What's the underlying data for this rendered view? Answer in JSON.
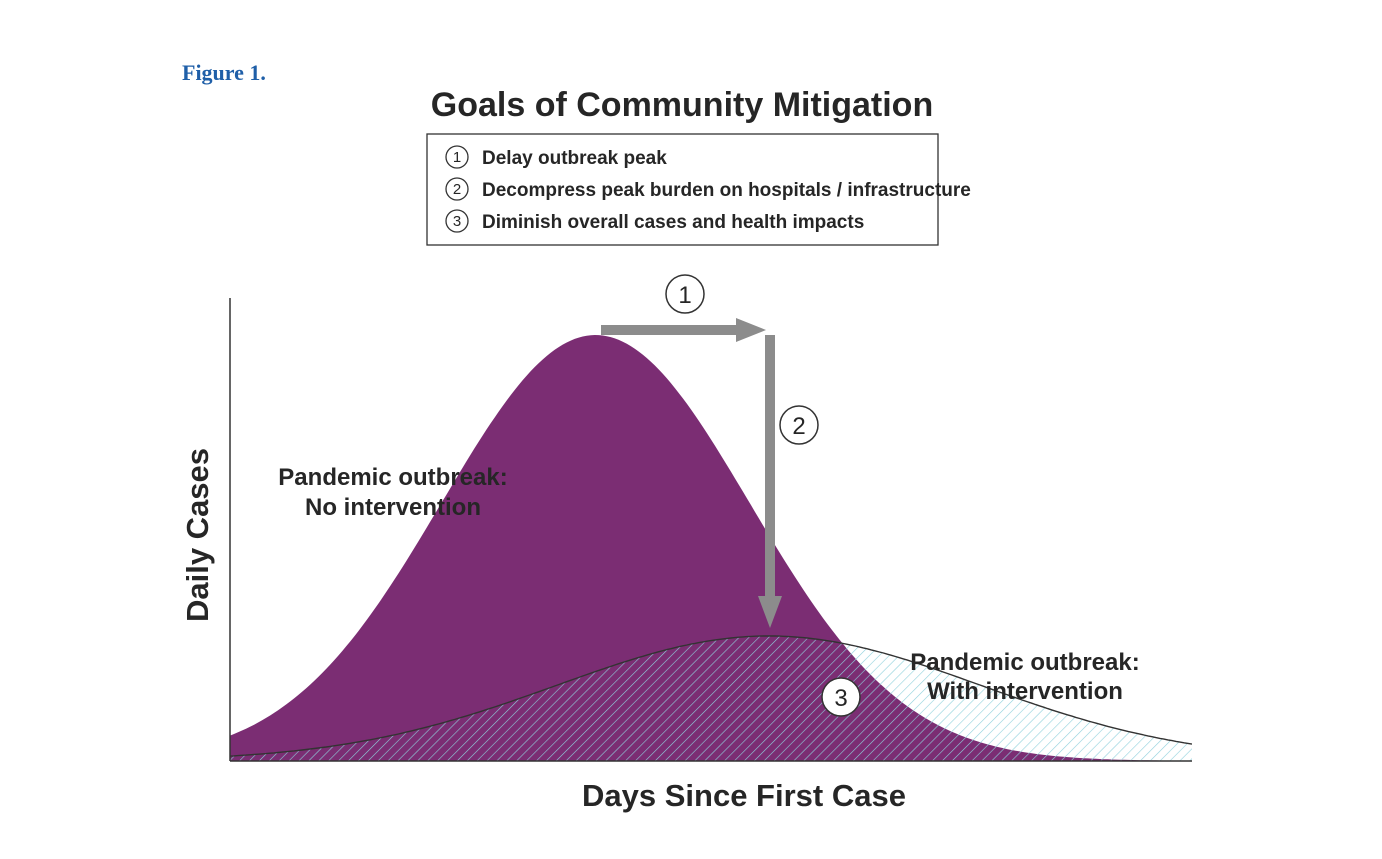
{
  "figure_label": "Figure 1.",
  "chart_data": {
    "type": "area",
    "title": "Goals of Community Mitigation",
    "xlabel": "Days Since First Case",
    "ylabel": "Daily Cases",
    "grid": false,
    "legend_position": "top-center",
    "legend_items": [
      {
        "number": "1",
        "text": "Delay outbreak peak"
      },
      {
        "number": "2",
        "text": "Decompress peak burden on hospitals / infrastructure"
      },
      {
        "number": "3",
        "text": "Diminish overall cases and health impacts"
      }
    ],
    "series": [
      {
        "name": "Pandemic outbreak: No intervention",
        "label_lines": [
          "Pandemic outbreak:",
          "No intervention"
        ],
        "color": "#7b2d73",
        "fill": "solid",
        "peak_x": 0.38,
        "peak_y": 0.92,
        "width": 0.16
      },
      {
        "name": "Pandemic outbreak: With intervention",
        "label_lines": [
          "Pandemic outbreak:",
          "With intervention"
        ],
        "color": "#8fd0dc",
        "fill": "hatched",
        "peak_x": 0.56,
        "peak_y": 0.27,
        "width": 0.22
      }
    ],
    "annotations": [
      {
        "number": "1",
        "meaning": "Delay outbreak peak"
      },
      {
        "number": "2",
        "meaning": "Decompress peak burden"
      },
      {
        "number": "3",
        "meaning": "Diminish overall cases"
      }
    ],
    "arrow_color": "#8c8c8c"
  }
}
